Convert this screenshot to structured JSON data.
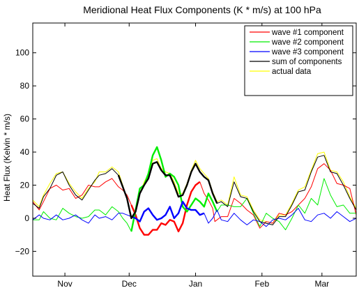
{
  "chart_data": {
    "type": "line",
    "title": "Meridional Heat Flux Components (K * m/s) at 100 hPa",
    "xlabel": "",
    "ylabel": "Heat Flux (Kelvin * m/s)",
    "xlim": [
      0,
      151
    ],
    "ylim": [
      -35,
      118
    ],
    "x_ticks": [
      {
        "label": "Nov",
        "value": 15
      },
      {
        "label": "Dec",
        "value": 45
      },
      {
        "label": "Jan",
        "value": 76
      },
      {
        "label": "Feb",
        "value": 107
      },
      {
        "label": "Mar",
        "value": 135
      }
    ],
    "y_ticks": [
      -20,
      0,
      20,
      40,
      60,
      80,
      100
    ],
    "grid": false,
    "legend_position": "top-right",
    "series": [
      {
        "name": "wave #1 component",
        "color": "#ff0000",
        "bold_range": [
          46,
          79
        ],
        "points": [
          [
            0,
            10
          ],
          [
            3,
            5
          ],
          [
            5,
            10
          ],
          [
            8,
            18
          ],
          [
            11,
            20
          ],
          [
            14,
            17
          ],
          [
            17,
            18
          ],
          [
            20,
            12
          ],
          [
            23,
            14
          ],
          [
            26,
            20
          ],
          [
            29,
            19
          ],
          [
            31,
            19
          ],
          [
            34,
            22
          ],
          [
            37,
            24
          ],
          [
            40,
            19
          ],
          [
            42,
            17
          ],
          [
            44,
            14
          ],
          [
            46,
            8
          ],
          [
            48,
            2
          ],
          [
            50,
            -6
          ],
          [
            52,
            -10
          ],
          [
            54,
            -10
          ],
          [
            56,
            -7
          ],
          [
            58,
            -7
          ],
          [
            60,
            -3
          ],
          [
            62,
            -4
          ],
          [
            64,
            -1
          ],
          [
            66,
            -2
          ],
          [
            68,
            -8
          ],
          [
            70,
            -3
          ],
          [
            72,
            8
          ],
          [
            74,
            16
          ],
          [
            76,
            20
          ],
          [
            78,
            22
          ],
          [
            80,
            15
          ],
          [
            82,
            11
          ],
          [
            84,
            6
          ],
          [
            85,
            -2
          ],
          [
            88,
            1
          ],
          [
            91,
            1
          ],
          [
            94,
            12
          ],
          [
            97,
            9
          ],
          [
            100,
            5
          ],
          [
            103,
            2
          ],
          [
            106,
            -6
          ],
          [
            109,
            -2
          ],
          [
            112,
            -3
          ],
          [
            115,
            3
          ],
          [
            118,
            2
          ],
          [
            121,
            4
          ],
          [
            124,
            8
          ],
          [
            127,
            12
          ],
          [
            130,
            19
          ],
          [
            133,
            30
          ],
          [
            136,
            33
          ],
          [
            139,
            29
          ],
          [
            142,
            21
          ],
          [
            145,
            20
          ],
          [
            148,
            18
          ],
          [
            151,
            2
          ]
        ]
      },
      {
        "name": "wave #2 component",
        "color": "#00ee00",
        "bold_range": [
          46,
          86
        ],
        "points": [
          [
            0,
            -1
          ],
          [
            3,
            -1
          ],
          [
            5,
            4
          ],
          [
            8,
            0
          ],
          [
            11,
            -1
          ],
          [
            14,
            6
          ],
          [
            17,
            3
          ],
          [
            20,
            1
          ],
          [
            23,
            0
          ],
          [
            26,
            1
          ],
          [
            29,
            5
          ],
          [
            31,
            5
          ],
          [
            34,
            2
          ],
          [
            37,
            7
          ],
          [
            40,
            4
          ],
          [
            42,
            0
          ],
          [
            44,
            -3
          ],
          [
            46,
            -8
          ],
          [
            48,
            5
          ],
          [
            50,
            18
          ],
          [
            52,
            20
          ],
          [
            54,
            27
          ],
          [
            56,
            38
          ],
          [
            58,
            43
          ],
          [
            60,
            35
          ],
          [
            62,
            25
          ],
          [
            64,
            27
          ],
          [
            66,
            25
          ],
          [
            68,
            20
          ],
          [
            70,
            7
          ],
          [
            72,
            4
          ],
          [
            74,
            8
          ],
          [
            76,
            12
          ],
          [
            78,
            10
          ],
          [
            80,
            7
          ],
          [
            82,
            15
          ],
          [
            84,
            10
          ],
          [
            86,
            4
          ],
          [
            88,
            8
          ],
          [
            91,
            8
          ],
          [
            94,
            7
          ],
          [
            97,
            7
          ],
          [
            100,
            12
          ],
          [
            103,
            3
          ],
          [
            106,
            -5
          ],
          [
            109,
            3
          ],
          [
            112,
            0
          ],
          [
            115,
            -2
          ],
          [
            118,
            -7
          ],
          [
            121,
            0
          ],
          [
            124,
            8
          ],
          [
            127,
            3
          ],
          [
            130,
            12
          ],
          [
            133,
            8
          ],
          [
            136,
            24
          ],
          [
            139,
            14
          ],
          [
            142,
            7
          ],
          [
            145,
            8
          ],
          [
            148,
            3
          ],
          [
            151,
            3
          ]
        ]
      },
      {
        "name": "wave #3 component",
        "color": "#0000ff",
        "bold_range": [
          46,
          80
        ],
        "points": [
          [
            0,
            -1
          ],
          [
            3,
            2
          ],
          [
            5,
            0
          ],
          [
            8,
            -1
          ],
          [
            11,
            2
          ],
          [
            14,
            -1
          ],
          [
            17,
            0
          ],
          [
            20,
            2
          ],
          [
            23,
            -1
          ],
          [
            26,
            -3
          ],
          [
            29,
            2
          ],
          [
            31,
            0
          ],
          [
            34,
            1
          ],
          [
            37,
            -1
          ],
          [
            40,
            3
          ],
          [
            42,
            3
          ],
          [
            44,
            2
          ],
          [
            46,
            1
          ],
          [
            48,
            0
          ],
          [
            50,
            -2
          ],
          [
            52,
            4
          ],
          [
            54,
            6
          ],
          [
            56,
            2
          ],
          [
            58,
            -1
          ],
          [
            60,
            0
          ],
          [
            62,
            2
          ],
          [
            64,
            7
          ],
          [
            66,
            0
          ],
          [
            68,
            3
          ],
          [
            70,
            10
          ],
          [
            72,
            6
          ],
          [
            74,
            5
          ],
          [
            76,
            5
          ],
          [
            78,
            2
          ],
          [
            80,
            3
          ],
          [
            82,
            -3
          ],
          [
            84,
            0
          ],
          [
            86,
            5
          ],
          [
            88,
            -1
          ],
          [
            91,
            -2
          ],
          [
            94,
            3
          ],
          [
            97,
            -1
          ],
          [
            100,
            -4
          ],
          [
            103,
            -1
          ],
          [
            106,
            -2
          ],
          [
            109,
            -5
          ],
          [
            112,
            -1
          ],
          [
            115,
            0
          ],
          [
            118,
            -1
          ],
          [
            121,
            2
          ],
          [
            124,
            6
          ],
          [
            127,
            -1
          ],
          [
            130,
            -2
          ],
          [
            133,
            2
          ],
          [
            136,
            3
          ],
          [
            139,
            0
          ],
          [
            142,
            4
          ],
          [
            145,
            1
          ],
          [
            148,
            -2
          ],
          [
            151,
            0
          ]
        ]
      },
      {
        "name": "sum of components",
        "color": "#000000",
        "bold_range": [
          38,
          86
        ],
        "points": [
          [
            0,
            9
          ],
          [
            3,
            6
          ],
          [
            5,
            13
          ],
          [
            8,
            18
          ],
          [
            11,
            26
          ],
          [
            14,
            28
          ],
          [
            17,
            20
          ],
          [
            20,
            14
          ],
          [
            23,
            11
          ],
          [
            26,
            17
          ],
          [
            29,
            23
          ],
          [
            31,
            26
          ],
          [
            34,
            27
          ],
          [
            37,
            30
          ],
          [
            40,
            26
          ],
          [
            42,
            19
          ],
          [
            44,
            12
          ],
          [
            46,
            0
          ],
          [
            48,
            4
          ],
          [
            50,
            15
          ],
          [
            52,
            20
          ],
          [
            54,
            24
          ],
          [
            56,
            33
          ],
          [
            58,
            34
          ],
          [
            60,
            29
          ],
          [
            62,
            26
          ],
          [
            64,
            26
          ],
          [
            66,
            20
          ],
          [
            68,
            13
          ],
          [
            70,
            14
          ],
          [
            72,
            20
          ],
          [
            74,
            28
          ],
          [
            76,
            33
          ],
          [
            78,
            28
          ],
          [
            80,
            25
          ],
          [
            82,
            23
          ],
          [
            84,
            15
          ],
          [
            86,
            9
          ],
          [
            88,
            10
          ],
          [
            91,
            7
          ],
          [
            94,
            22
          ],
          [
            97,
            13
          ],
          [
            100,
            12
          ],
          [
            103,
            4
          ],
          [
            106,
            -2
          ],
          [
            109,
            -3
          ],
          [
            112,
            -4
          ],
          [
            115,
            1
          ],
          [
            118,
            1
          ],
          [
            121,
            8
          ],
          [
            124,
            16
          ],
          [
            127,
            17
          ],
          [
            130,
            28
          ],
          [
            133,
            37
          ],
          [
            136,
            38
          ],
          [
            139,
            28
          ],
          [
            142,
            27
          ],
          [
            145,
            20
          ],
          [
            148,
            12
          ],
          [
            151,
            5
          ]
        ]
      },
      {
        "name": "actual data",
        "color": "#ffff00",
        "bold_range": null,
        "points": [
          [
            0,
            11
          ],
          [
            3,
            7
          ],
          [
            5,
            14
          ],
          [
            8,
            21
          ],
          [
            11,
            27
          ],
          [
            14,
            28
          ],
          [
            17,
            21
          ],
          [
            20,
            16
          ],
          [
            23,
            12
          ],
          [
            26,
            18
          ],
          [
            29,
            22
          ],
          [
            31,
            28
          ],
          [
            34,
            28
          ],
          [
            37,
            31
          ],
          [
            40,
            28
          ],
          [
            42,
            20
          ],
          [
            44,
            12
          ],
          [
            46,
            0
          ],
          [
            48,
            5
          ],
          [
            50,
            15
          ],
          [
            52,
            22
          ],
          [
            54,
            27
          ],
          [
            56,
            35
          ],
          [
            58,
            36
          ],
          [
            60,
            30
          ],
          [
            62,
            28
          ],
          [
            64,
            27
          ],
          [
            66,
            22
          ],
          [
            68,
            15
          ],
          [
            70,
            15
          ],
          [
            72,
            21
          ],
          [
            74,
            29
          ],
          [
            76,
            35
          ],
          [
            78,
            30
          ],
          [
            80,
            27
          ],
          [
            82,
            24
          ],
          [
            84,
            16
          ],
          [
            86,
            10
          ],
          [
            88,
            11
          ],
          [
            91,
            8
          ],
          [
            94,
            25
          ],
          [
            97,
            14
          ],
          [
            100,
            13
          ],
          [
            103,
            5
          ],
          [
            106,
            -1
          ],
          [
            109,
            -2
          ],
          [
            112,
            -3
          ],
          [
            115,
            2
          ],
          [
            118,
            2
          ],
          [
            121,
            9
          ],
          [
            124,
            17
          ],
          [
            127,
            19
          ],
          [
            130,
            29
          ],
          [
            133,
            39
          ],
          [
            136,
            40
          ],
          [
            139,
            29
          ],
          [
            142,
            28
          ],
          [
            145,
            22
          ],
          [
            148,
            13
          ],
          [
            151,
            6
          ]
        ]
      }
    ]
  }
}
